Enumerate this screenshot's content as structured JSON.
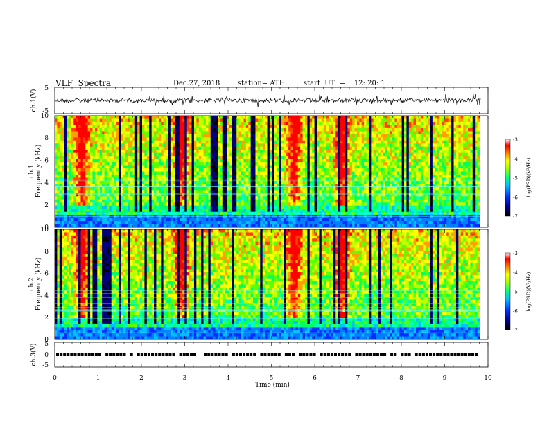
{
  "header": {
    "title": "VLF  Spectra",
    "date": "Dec.27, 2018",
    "station": "station= ATH",
    "start": "start  UT  =    12: 20: 1"
  },
  "chart_data": [
    {
      "type": "line",
      "ylabel": "ch.1(V)",
      "yticks": [
        "5",
        "-5"
      ],
      "ylim": [
        -5,
        5
      ]
    },
    {
      "type": "heatmap",
      "ylabel_line1": "ch.1",
      "ylabel_line2": "Frequency  (kHz)",
      "ylim": [
        0,
        10
      ],
      "yticks": [
        "0",
        "2",
        "4",
        "6",
        "8",
        "10"
      ],
      "colorbar": {
        "label": "log(PSD)(V²/Hz)",
        "ticks": [
          "-3",
          "-4",
          "-5",
          "-6",
          "-7"
        ],
        "range": [
          -7,
          -3
        ]
      }
    },
    {
      "type": "heatmap",
      "ylabel_line1": "ch.2",
      "ylabel_line2": "Frequency  (kHz)",
      "ylim": [
        0,
        10
      ],
      "yticks": [
        "0",
        "2",
        "4",
        "6",
        "8",
        "10"
      ],
      "colorbar": {
        "label": "log(PSD)(V²/Hz)",
        "ticks": [
          "-3",
          "-4",
          "-5",
          "-6",
          "-7"
        ],
        "range": [
          -7,
          -3
        ]
      }
    },
    {
      "type": "line",
      "ylabel": "ch.3(V)",
      "yticks": [
        "5",
        "0",
        "-5"
      ],
      "ylim": [
        -5,
        5
      ]
    }
  ],
  "xaxis": {
    "label": "Time  (min)",
    "xlim": [
      0,
      10
    ],
    "ticks": [
      "0",
      "1",
      "2",
      "3",
      "4",
      "5",
      "6",
      "7",
      "8",
      "9",
      "10"
    ]
  }
}
